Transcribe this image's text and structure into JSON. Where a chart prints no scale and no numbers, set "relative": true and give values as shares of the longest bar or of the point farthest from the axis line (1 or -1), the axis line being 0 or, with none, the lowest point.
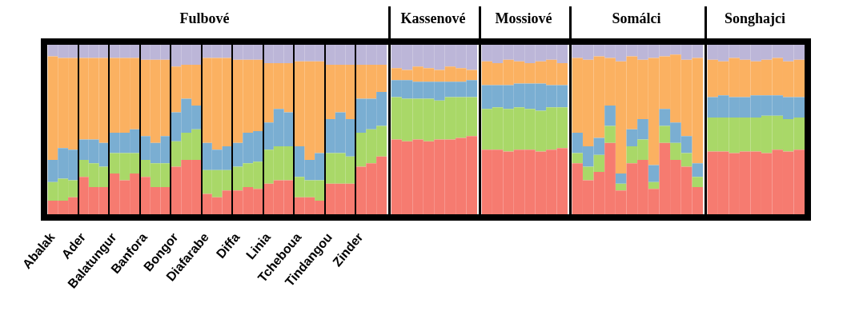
{
  "chart_data": [
    {
      "type": "bar",
      "title": "Fulbové",
      "stacked": true,
      "relative": true,
      "categories": [
        "Abalak",
        null,
        null,
        "Ader",
        null,
        null,
        "Balatungur",
        null,
        null,
        "Banfora",
        null,
        null,
        "Bongor",
        null,
        null,
        "Diafarabe",
        null,
        null,
        "Diffa",
        null,
        null,
        "Linia",
        null,
        null,
        "Tcheboua",
        null,
        null,
        "Tindangou",
        null,
        null,
        "Zinder",
        null,
        null
      ],
      "series": [
        {
          "color": "#f67b70",
          "values": [
            0.08,
            0.08,
            0.1,
            0.22,
            0.16,
            0.16,
            0.24,
            0.2,
            0.24,
            0.22,
            0.16,
            0.16,
            0.28,
            0.32,
            0.32,
            0.12,
            0.1,
            0.14,
            0.14,
            0.16,
            0.15,
            0.18,
            0.2,
            0.2,
            0.1,
            0.1,
            0.08,
            0.18,
            0.18,
            0.18,
            0.28,
            0.3,
            0.34
          ]
        },
        {
          "color": "#a9d868",
          "values": [
            0.11,
            0.13,
            0.1,
            0.1,
            0.14,
            0.12,
            0.12,
            0.16,
            0.12,
            0.1,
            0.14,
            0.14,
            0.15,
            0.16,
            0.18,
            0.14,
            0.16,
            0.12,
            0.14,
            0.14,
            0.16,
            0.2,
            0.2,
            0.2,
            0.12,
            0.1,
            0.12,
            0.18,
            0.18,
            0.16,
            0.2,
            0.2,
            0.18
          ]
        },
        {
          "color": "#7aaed2",
          "values": [
            0.13,
            0.18,
            0.18,
            0.12,
            0.14,
            0.14,
            0.12,
            0.12,
            0.14,
            0.14,
            0.12,
            0.16,
            0.17,
            0.2,
            0.14,
            0.16,
            0.12,
            0.14,
            0.14,
            0.18,
            0.18,
            0.16,
            0.22,
            0.2,
            0.18,
            0.12,
            0.16,
            0.2,
            0.24,
            0.22,
            0.2,
            0.18,
            0.2
          ]
        },
        {
          "color": "#fbb161",
          "values": [
            0.61,
            0.53,
            0.54,
            0.48,
            0.48,
            0.5,
            0.44,
            0.44,
            0.42,
            0.45,
            0.49,
            0.45,
            0.27,
            0.2,
            0.24,
            0.5,
            0.54,
            0.52,
            0.49,
            0.43,
            0.42,
            0.35,
            0.27,
            0.29,
            0.5,
            0.58,
            0.54,
            0.32,
            0.28,
            0.32,
            0.2,
            0.2,
            0.16
          ]
        },
        {
          "color": "#bcb6d8",
          "values": [
            0.07,
            0.08,
            0.08,
            0.08,
            0.08,
            0.08,
            0.08,
            0.08,
            0.08,
            0.09,
            0.09,
            0.09,
            0.13,
            0.12,
            0.12,
            0.08,
            0.08,
            0.08,
            0.09,
            0.09,
            0.09,
            0.11,
            0.11,
            0.11,
            0.1,
            0.1,
            0.1,
            0.12,
            0.12,
            0.12,
            0.12,
            0.12,
            0.12
          ]
        }
      ]
    },
    {
      "type": "bar",
      "title": "Kassenové",
      "stacked": true,
      "relative": true,
      "categories": [
        null,
        null,
        null,
        null,
        null,
        null,
        null,
        null
      ],
      "series": [
        {
          "color": "#f67b70",
          "values": [
            0.44,
            0.43,
            0.44,
            0.43,
            0.44,
            0.44,
            0.45,
            0.46
          ]
        },
        {
          "color": "#a9d868",
          "values": [
            0.25,
            0.25,
            0.24,
            0.25,
            0.23,
            0.25,
            0.24,
            0.23
          ]
        },
        {
          "color": "#7aaed2",
          "values": [
            0.1,
            0.11,
            0.1,
            0.1,
            0.11,
            0.09,
            0.09,
            0.1
          ]
        },
        {
          "color": "#fbb161",
          "values": [
            0.07,
            0.06,
            0.09,
            0.08,
            0.07,
            0.09,
            0.08,
            0.06
          ]
        },
        {
          "color": "#bcb6d8",
          "values": [
            0.14,
            0.15,
            0.13,
            0.14,
            0.15,
            0.13,
            0.14,
            0.15
          ]
        }
      ]
    },
    {
      "type": "bar",
      "title": "Mossiové",
      "stacked": true,
      "relative": true,
      "categories": [
        null,
        null,
        null,
        null,
        null,
        null,
        null,
        null
      ],
      "series": [
        {
          "color": "#f67b70",
          "values": [
            0.38,
            0.38,
            0.37,
            0.38,
            0.38,
            0.37,
            0.38,
            0.39
          ]
        },
        {
          "color": "#a9d868",
          "values": [
            0.24,
            0.25,
            0.25,
            0.25,
            0.24,
            0.24,
            0.25,
            0.24
          ]
        },
        {
          "color": "#7aaed2",
          "values": [
            0.14,
            0.13,
            0.14,
            0.14,
            0.15,
            0.16,
            0.13,
            0.13
          ]
        },
        {
          "color": "#fbb161",
          "values": [
            0.14,
            0.13,
            0.15,
            0.13,
            0.12,
            0.13,
            0.15,
            0.13
          ]
        },
        {
          "color": "#bcb6d8",
          "values": [
            0.1,
            0.11,
            0.09,
            0.1,
            0.11,
            0.1,
            0.09,
            0.11
          ]
        }
      ]
    },
    {
      "type": "bar",
      "title": "Somálci",
      "stacked": true,
      "relative": true,
      "categories": [
        null,
        null,
        null,
        null,
        null,
        null,
        null,
        null,
        null,
        null,
        null,
        null
      ],
      "series": [
        {
          "color": "#f67b70",
          "values": [
            0.3,
            0.2,
            0.25,
            0.42,
            0.14,
            0.3,
            0.32,
            0.15,
            0.42,
            0.32,
            0.28,
            0.16
          ]
        },
        {
          "color": "#a9d868",
          "values": [
            0.06,
            0.08,
            0.1,
            0.1,
            0.04,
            0.1,
            0.12,
            0.04,
            0.1,
            0.1,
            0.08,
            0.06
          ]
        },
        {
          "color": "#7aaed2",
          "values": [
            0.12,
            0.12,
            0.1,
            0.12,
            0.06,
            0.1,
            0.12,
            0.1,
            0.1,
            0.12,
            0.1,
            0.08
          ]
        },
        {
          "color": "#fbb161",
          "values": [
            0.44,
            0.51,
            0.48,
            0.28,
            0.66,
            0.43,
            0.35,
            0.63,
            0.31,
            0.4,
            0.45,
            0.62
          ]
        },
        {
          "color": "#bcb6d8",
          "values": [
            0.08,
            0.09,
            0.07,
            0.08,
            0.1,
            0.07,
            0.09,
            0.08,
            0.07,
            0.06,
            0.09,
            0.08
          ]
        }
      ]
    },
    {
      "type": "bar",
      "title": "Songhajci",
      "stacked": true,
      "relative": true,
      "categories": [
        null,
        null,
        null,
        null,
        null,
        null,
        null,
        null,
        null
      ],
      "series": [
        {
          "color": "#f67b70",
          "values": [
            0.37,
            0.37,
            0.36,
            0.37,
            0.37,
            0.36,
            0.38,
            0.37,
            0.38
          ]
        },
        {
          "color": "#a9d868",
          "values": [
            0.2,
            0.2,
            0.21,
            0.2,
            0.2,
            0.22,
            0.2,
            0.19,
            0.19
          ]
        },
        {
          "color": "#7aaed2",
          "values": [
            0.12,
            0.13,
            0.12,
            0.12,
            0.13,
            0.12,
            0.12,
            0.13,
            0.12
          ]
        },
        {
          "color": "#fbb161",
          "values": [
            0.22,
            0.2,
            0.23,
            0.22,
            0.2,
            0.21,
            0.22,
            0.21,
            0.22
          ]
        },
        {
          "color": "#bcb6d8",
          "values": [
            0.09,
            0.1,
            0.08,
            0.09,
            0.1,
            0.09,
            0.08,
            0.1,
            0.09
          ]
        }
      ]
    }
  ]
}
